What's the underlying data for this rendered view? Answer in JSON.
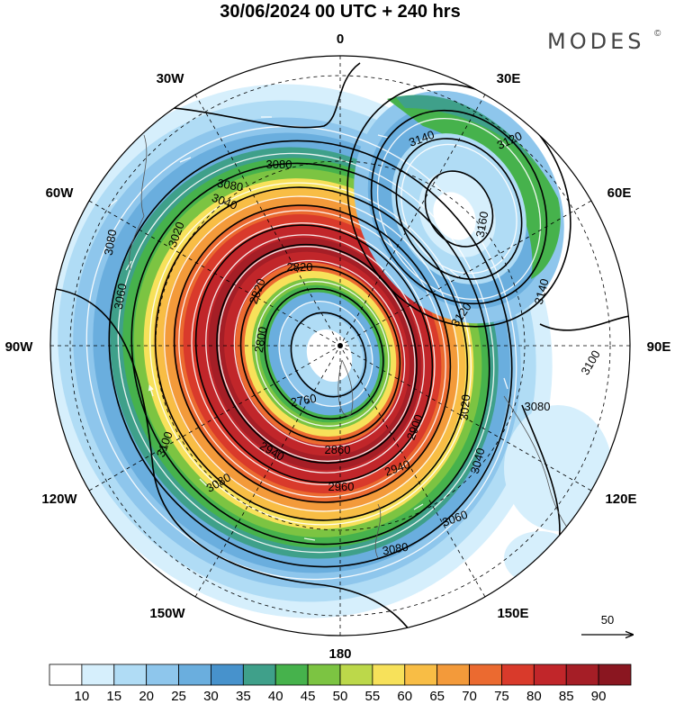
{
  "title": "30/06/2024  00 UTC  + 240 hrs",
  "brand": "MODES",
  "brand_mark": "©",
  "longitude_labels": [
    {
      "key": "0",
      "text": "0"
    },
    {
      "key": "30E",
      "text": "30E"
    },
    {
      "key": "60E",
      "text": "60E"
    },
    {
      "key": "90E",
      "text": "90E"
    },
    {
      "key": "120E",
      "text": "120E"
    },
    {
      "key": "150E",
      "text": "150E"
    },
    {
      "key": "180",
      "text": "180"
    },
    {
      "key": "150W",
      "text": "150W"
    },
    {
      "key": "120W",
      "text": "120W"
    },
    {
      "key": "90W",
      "text": "90W"
    },
    {
      "key": "60W",
      "text": "60W"
    },
    {
      "key": "30W",
      "text": "30W"
    }
  ],
  "contour_labels": [
    {
      "v": "3140"
    },
    {
      "v": "3120"
    },
    {
      "v": "3160"
    },
    {
      "v": "3140"
    },
    {
      "v": "3120"
    },
    {
      "v": "3100"
    },
    {
      "v": "3080"
    },
    {
      "v": "3080"
    },
    {
      "v": "3040"
    },
    {
      "v": "3020"
    },
    {
      "v": "3080"
    },
    {
      "v": "3060"
    },
    {
      "v": "2820"
    },
    {
      "v": "2820"
    },
    {
      "v": "2800"
    },
    {
      "v": "2760"
    },
    {
      "v": "2860"
    },
    {
      "v": "2900"
    },
    {
      "v": "2940"
    },
    {
      "v": "2960"
    },
    {
      "v": "3020"
    },
    {
      "v": "3040"
    },
    {
      "v": "3060"
    },
    {
      "v": "3080"
    },
    {
      "v": "3080"
    },
    {
      "v": "2940"
    },
    {
      "v": "3100"
    },
    {
      "v": "3080"
    }
  ],
  "vector_reference": "50",
  "colorbar": {
    "ticks": [
      "10",
      "15",
      "20",
      "25",
      "30",
      "35",
      "40",
      "45",
      "50",
      "55",
      "60",
      "65",
      "70",
      "75",
      "80",
      "85",
      "90"
    ],
    "colors": [
      "#ffffff",
      "#d6effc",
      "#b0dcf5",
      "#8ec6ec",
      "#6aaede",
      "#4792cc",
      "#3fa08a",
      "#46b24c",
      "#7cc442",
      "#bcd84a",
      "#f7e15a",
      "#f8bd45",
      "#f39a3a",
      "#eb6a30",
      "#d93a2b",
      "#c1262a",
      "#a51e26",
      "#8a1620"
    ]
  }
}
